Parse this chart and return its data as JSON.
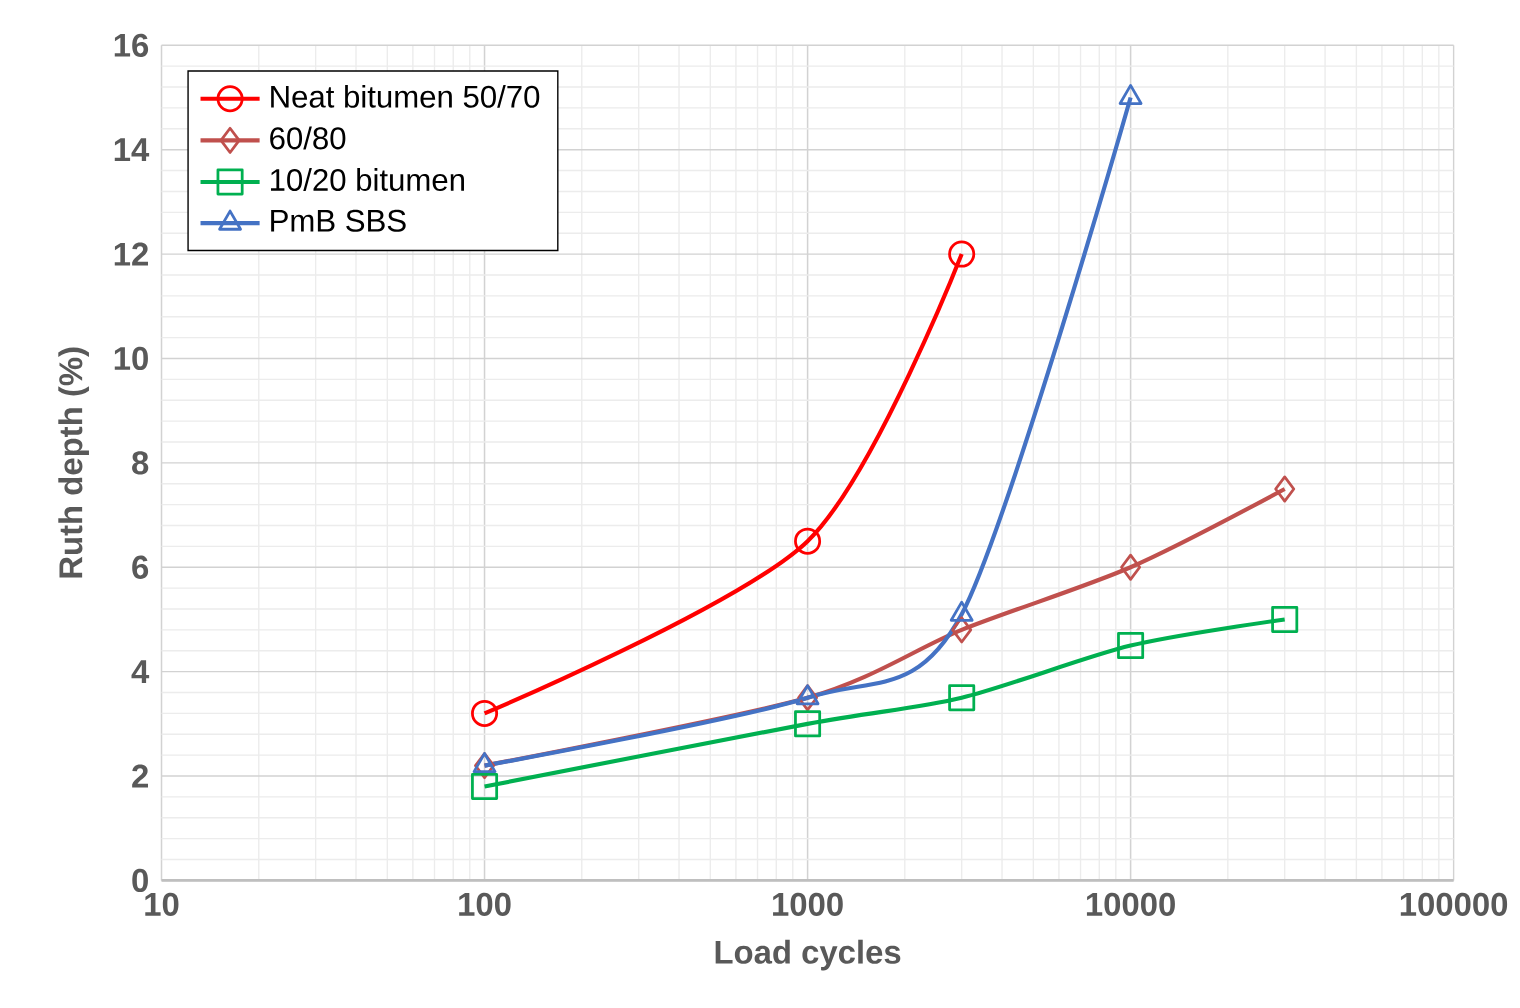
{
  "chart_data": {
    "type": "line",
    "xlabel": "Load cycles",
    "ylabel": "Ruth depth (%)",
    "log": "x",
    "xlim": [
      10,
      100000
    ],
    "xticks": [
      10,
      100,
      1000,
      10000,
      100000
    ],
    "ylim": [
      0,
      16
    ],
    "yticks": [
      0,
      2,
      4,
      6,
      8,
      10,
      12,
      14,
      16
    ],
    "grid": true,
    "legend": "top left",
    "series": [
      {
        "name": "Neat bitumen 50/70",
        "color": "#ff0000",
        "marker": "circle",
        "x": [
          100,
          1000,
          3000
        ],
        "values": [
          3.2,
          6.5,
          12
        ]
      },
      {
        "name": "60/80",
        "color": "#c0504d",
        "marker": "diamond",
        "x": [
          100,
          1000,
          3000,
          10000,
          30000
        ],
        "values": [
          2.2,
          3.5,
          4.8,
          6,
          7.5
        ]
      },
      {
        "name": "10/20 bitumen",
        "color": "#00b050",
        "marker": "square",
        "x": [
          100,
          1000,
          3000,
          10000,
          30000
        ],
        "values": [
          1.8,
          3,
          3.5,
          4.5,
          5
        ]
      },
      {
        "name": "PmB SBS",
        "color": "#4472c4",
        "marker": "triangle",
        "x": [
          100,
          1000,
          3000,
          10000
        ],
        "values": [
          2.2,
          3.5,
          5.1,
          15
        ]
      }
    ]
  }
}
